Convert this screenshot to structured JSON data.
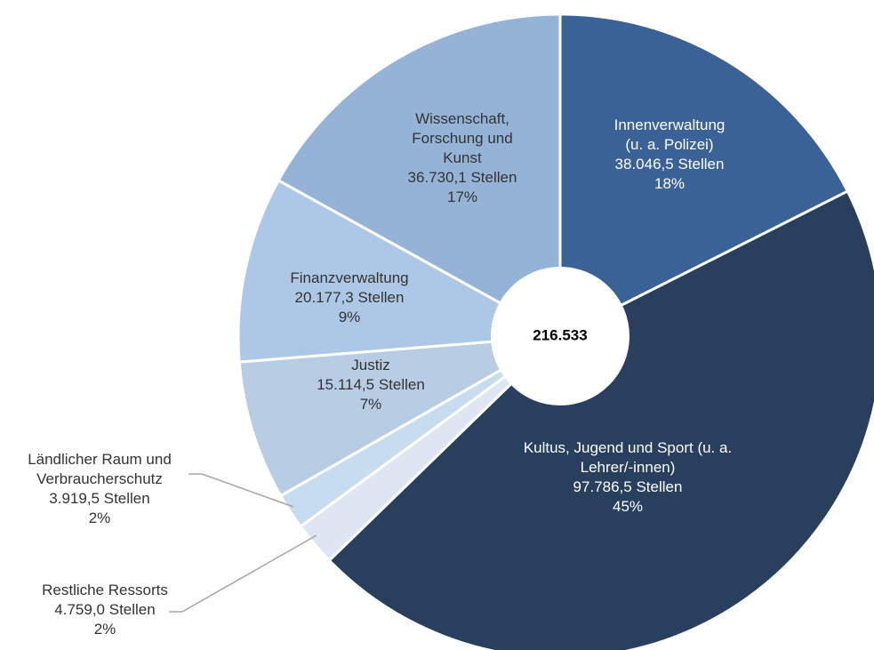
{
  "chart_data": {
    "type": "donut",
    "center_label": "216.533",
    "categories": [
      [
        "Innenverwaltung",
        "(u. a. Polizei)"
      ],
      [
        "Kultus, Jugend und Sport (u. a.",
        "Lehrer/-innen)"
      ],
      [
        "Restliche Ressorts"
      ],
      [
        "Ländlicher Raum und",
        "Verbraucherschutz"
      ],
      [
        "Justiz"
      ],
      [
        "Finanzverwaltung"
      ],
      [
        "Wissenschaft,",
        "Forschung und",
        "Kunst"
      ]
    ],
    "values": [
      38046.5,
      97786.5,
      4759.0,
      3919.5,
      15114.5,
      20177.3,
      36730.1
    ],
    "value_labels": [
      "38.046,5 Stellen",
      "97.786,5 Stellen",
      "4.759,0 Stellen",
      "3.919,5 Stellen",
      "15.114,5 Stellen",
      "20.177,3 Stellen",
      "36.730,1 Stellen"
    ],
    "share_labels": [
      "18%",
      "45%",
      "2%",
      "2%",
      "7%",
      "9%",
      "17%"
    ],
    "colors": [
      "#3a6296",
      "#283f5e",
      "#dde6f2",
      "#c8dcf0",
      "#b8cce4",
      "#adc8e6",
      "#95b3d7"
    ]
  }
}
